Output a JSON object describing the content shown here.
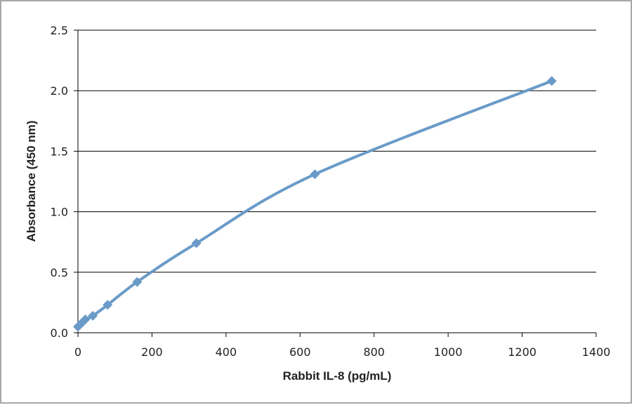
{
  "chart_data": {
    "type": "line",
    "title": "",
    "xlabel": "Rabbit IL-8 (pg/mL)",
    "ylabel": "Absorbance  (450 nm)",
    "xlim": [
      0,
      1400
    ],
    "ylim": [
      0,
      2.5
    ],
    "x_ticks": [
      "0",
      "200",
      "400",
      "600",
      "800",
      "1000",
      "1200",
      "1400"
    ],
    "y_ticks": [
      "0.0",
      "0.5",
      "1.0",
      "1.5",
      "2.0",
      "2.5"
    ],
    "grid": "horizontal",
    "marker": "diamond",
    "color": "#6a9bc8",
    "series": [
      {
        "x": [
          0,
          10,
          20,
          40,
          80,
          160,
          320,
          640,
          1280
        ],
        "y": [
          0.05,
          0.08,
          0.11,
          0.14,
          0.23,
          0.42,
          0.74,
          1.31,
          2.08
        ]
      }
    ]
  }
}
